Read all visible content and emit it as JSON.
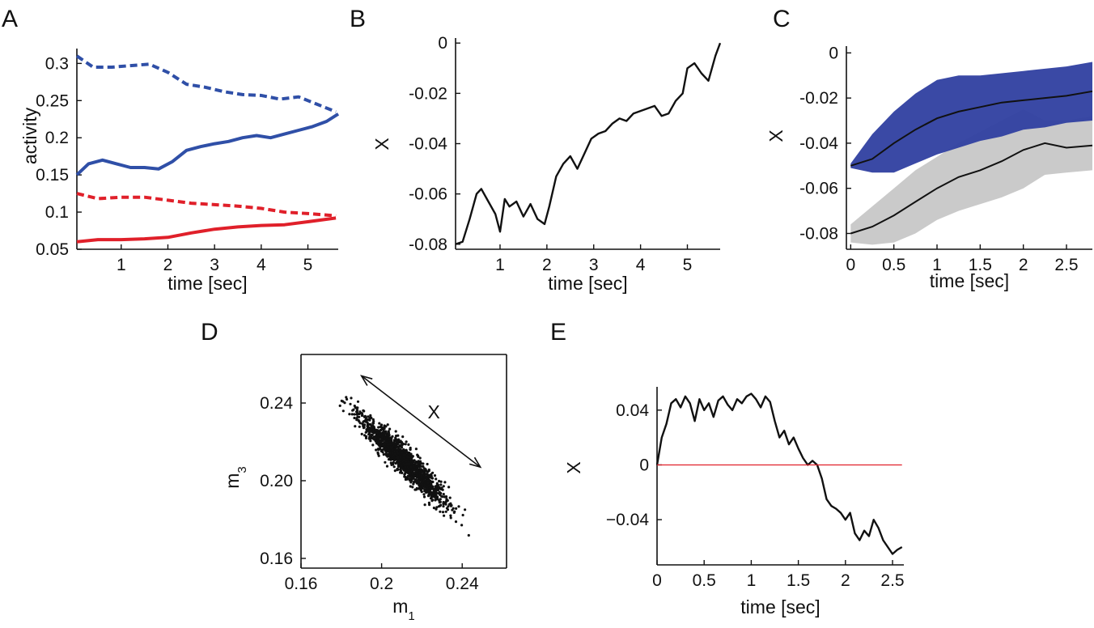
{
  "colors": {
    "blue": "#2f4fa7",
    "red": "#e0202a",
    "black": "#111111",
    "band_blue": "#2f3fa0",
    "band_gray": "#c4c4c4"
  },
  "chart_data": [
    {
      "panel": "A",
      "type": "line",
      "xlabel": "time [sec]",
      "ylabel": "activity",
      "xlim": [
        0.05,
        5.65
      ],
      "ylim": [
        0.05,
        0.32
      ],
      "xticks": [
        1,
        2,
        3,
        4,
        5
      ],
      "xtick_labels": [
        "1",
        "2",
        "3",
        "4",
        "5"
      ],
      "yticks": [
        0.05,
        0.1,
        0.15,
        0.2,
        0.25,
        0.3
      ],
      "ytick_labels": [
        "0.05",
        "0.1",
        "0.15",
        "0.2",
        "0.25",
        "0.3"
      ],
      "series": [
        {
          "color": "blue",
          "style": "dashed",
          "x": [
            0.05,
            0.4,
            0.8,
            1.2,
            1.6,
            2.0,
            2.4,
            2.8,
            3.2,
            3.6,
            4.0,
            4.4,
            4.8,
            5.2,
            5.6
          ],
          "y": [
            0.31,
            0.295,
            0.295,
            0.297,
            0.299,
            0.288,
            0.272,
            0.268,
            0.262,
            0.258,
            0.257,
            0.252,
            0.255,
            0.245,
            0.235
          ]
        },
        {
          "color": "blue",
          "style": "solid",
          "x": [
            0.05,
            0.3,
            0.6,
            0.9,
            1.2,
            1.5,
            1.8,
            2.1,
            2.4,
            2.7,
            3.0,
            3.3,
            3.6,
            3.9,
            4.2,
            4.5,
            4.8,
            5.1,
            5.4,
            5.65
          ],
          "y": [
            0.15,
            0.165,
            0.17,
            0.165,
            0.16,
            0.16,
            0.158,
            0.168,
            0.183,
            0.188,
            0.192,
            0.195,
            0.2,
            0.203,
            0.2,
            0.205,
            0.21,
            0.215,
            0.222,
            0.232
          ]
        },
        {
          "color": "red",
          "style": "dashed",
          "x": [
            0.05,
            0.5,
            1.0,
            1.5,
            2.0,
            2.5,
            3.0,
            3.5,
            4.0,
            4.5,
            5.0,
            5.6
          ],
          "y": [
            0.125,
            0.118,
            0.12,
            0.12,
            0.116,
            0.112,
            0.11,
            0.108,
            0.105,
            0.1,
            0.098,
            0.095
          ]
        },
        {
          "color": "red",
          "style": "solid",
          "x": [
            0.05,
            0.5,
            1.0,
            1.5,
            2.0,
            2.5,
            3.0,
            3.5,
            4.0,
            4.5,
            5.0,
            5.6
          ],
          "y": [
            0.06,
            0.063,
            0.063,
            0.064,
            0.066,
            0.072,
            0.077,
            0.08,
            0.082,
            0.083,
            0.087,
            0.092
          ]
        }
      ]
    },
    {
      "panel": "B",
      "type": "line",
      "xlabel": "time [sec]",
      "ylabel": "X",
      "xlim": [
        0.05,
        5.7
      ],
      "ylim": [
        -0.082,
        0.002
      ],
      "xticks": [
        1,
        2,
        3,
        4,
        5
      ],
      "xtick_labels": [
        "1",
        "2",
        "3",
        "4",
        "5"
      ],
      "yticks": [
        0,
        -0.02,
        -0.04,
        -0.06,
        -0.08
      ],
      "ytick_labels": [
        "0",
        "-0.02",
        "-0.04",
        "-0.06",
        "-0.08"
      ],
      "series": [
        {
          "color": "black",
          "style": "solid",
          "x": [
            0.05,
            0.2,
            0.35,
            0.5,
            0.6,
            0.75,
            0.9,
            1.0,
            1.1,
            1.2,
            1.35,
            1.5,
            1.65,
            1.8,
            1.95,
            2.05,
            2.2,
            2.35,
            2.5,
            2.65,
            2.8,
            2.95,
            3.1,
            3.25,
            3.4,
            3.55,
            3.7,
            3.85,
            4.0,
            4.15,
            4.3,
            4.45,
            4.6,
            4.75,
            4.9,
            5.0,
            5.15,
            5.3,
            5.45,
            5.6,
            5.7
          ],
          "y": [
            -0.08,
            -0.079,
            -0.07,
            -0.06,
            -0.058,
            -0.063,
            -0.068,
            -0.075,
            -0.062,
            -0.065,
            -0.063,
            -0.069,
            -0.064,
            -0.07,
            -0.072,
            -0.065,
            -0.053,
            -0.048,
            -0.045,
            -0.05,
            -0.044,
            -0.038,
            -0.036,
            -0.035,
            -0.032,
            -0.03,
            -0.031,
            -0.028,
            -0.027,
            -0.026,
            -0.025,
            -0.029,
            -0.028,
            -0.023,
            -0.02,
            -0.01,
            -0.008,
            -0.012,
            -0.015,
            -0.005,
            0.0
          ]
        }
      ]
    },
    {
      "panel": "C",
      "type": "area",
      "xlabel": "time [sec]",
      "ylabel": "X",
      "xlim": [
        -0.05,
        2.8
      ],
      "ylim": [
        -0.087,
        0.003
      ],
      "xticks": [
        0,
        0.5,
        1,
        1.5,
        2,
        2.5
      ],
      "xtick_labels": [
        "0",
        "0.5",
        "1",
        "1.5",
        "2",
        "2.5"
      ],
      "yticks": [
        0,
        -0.02,
        -0.04,
        -0.06,
        -0.08
      ],
      "ytick_labels": [
        "0",
        "-0.02",
        "-0.04",
        "-0.06",
        "-0.08"
      ],
      "series": [
        {
          "color": "band_gray",
          "x": [
            0,
            0.25,
            0.5,
            0.75,
            1.0,
            1.25,
            1.5,
            1.75,
            2.0,
            2.25,
            2.5,
            2.8
          ],
          "mean": [
            -0.08,
            -0.077,
            -0.072,
            -0.066,
            -0.06,
            -0.055,
            -0.052,
            -0.048,
            -0.043,
            -0.04,
            -0.042,
            -0.041
          ],
          "upper": [
            -0.076,
            -0.068,
            -0.06,
            -0.052,
            -0.046,
            -0.04,
            -0.035,
            -0.03,
            -0.025,
            -0.03,
            -0.03,
            -0.028
          ],
          "lower": [
            -0.084,
            -0.085,
            -0.084,
            -0.08,
            -0.074,
            -0.07,
            -0.067,
            -0.064,
            -0.06,
            -0.054,
            -0.053,
            -0.052
          ]
        },
        {
          "color": "band_blue",
          "x": [
            0,
            0.25,
            0.5,
            0.75,
            1.0,
            1.25,
            1.5,
            1.75,
            2.0,
            2.25,
            2.5,
            2.8
          ],
          "mean": [
            -0.05,
            -0.047,
            -0.04,
            -0.034,
            -0.029,
            -0.026,
            -0.024,
            -0.022,
            -0.021,
            -0.02,
            -0.019,
            -0.017
          ],
          "upper": [
            -0.049,
            -0.036,
            -0.026,
            -0.018,
            -0.012,
            -0.01,
            -0.01,
            -0.009,
            -0.008,
            -0.007,
            -0.006,
            -0.004
          ],
          "lower": [
            -0.051,
            -0.053,
            -0.053,
            -0.049,
            -0.045,
            -0.042,
            -0.039,
            -0.037,
            -0.034,
            -0.033,
            -0.031,
            -0.03
          ]
        }
      ]
    },
    {
      "panel": "D",
      "type": "scatter",
      "xlabel": "m",
      "xlabel_sub": "1",
      "ylabel": "m",
      "ylabel_sub": "3",
      "xlim": [
        0.16,
        0.262
      ],
      "ylim": [
        0.155,
        0.265
      ],
      "xticks": [
        0.16,
        0.2,
        0.24
      ],
      "xtick_labels": [
        "0.16",
        "0.2",
        "0.24"
      ],
      "yticks": [
        0.16,
        0.2,
        0.24
      ],
      "ytick_labels": [
        "0.16",
        "0.20",
        "0.24"
      ],
      "point_cloud": {
        "from": [
          0.164,
          0.259
        ],
        "to": [
          0.258,
          0.162
        ],
        "spread": 0.0045,
        "count": 1400
      },
      "annotation": {
        "label": "X",
        "arrow_from": [
          0.19,
          0.254
        ],
        "arrow_to": [
          0.249,
          0.207
        ]
      }
    },
    {
      "panel": "E",
      "type": "line",
      "xlabel": "time [sec]",
      "ylabel": "X",
      "xlim": [
        0,
        2.62
      ],
      "ylim": [
        -0.073,
        0.057
      ],
      "xticks": [
        0,
        0.5,
        1,
        1.5,
        2,
        2.5
      ],
      "xtick_labels": [
        "0",
        "0.5",
        "1",
        "1.5",
        "2",
        "2.5"
      ],
      "yticks": [
        0.04,
        0,
        -0.04
      ],
      "ytick_labels": [
        "0.04",
        "0",
        "−0.04"
      ],
      "series": [
        {
          "color": "black",
          "style": "solid",
          "x": [
            0,
            0.05,
            0.1,
            0.15,
            0.2,
            0.25,
            0.3,
            0.35,
            0.4,
            0.45,
            0.5,
            0.55,
            0.6,
            0.65,
            0.7,
            0.75,
            0.8,
            0.85,
            0.9,
            0.95,
            1.0,
            1.05,
            1.1,
            1.15,
            1.2,
            1.25,
            1.3,
            1.35,
            1.4,
            1.45,
            1.5,
            1.55,
            1.6,
            1.65,
            1.7,
            1.75,
            1.8,
            1.85,
            1.9,
            1.95,
            2.0,
            2.05,
            2.1,
            2.15,
            2.2,
            2.25,
            2.3,
            2.35,
            2.4,
            2.45,
            2.5,
            2.55,
            2.6
          ],
          "y": [
            0.0,
            0.02,
            0.03,
            0.045,
            0.048,
            0.042,
            0.05,
            0.045,
            0.032,
            0.048,
            0.04,
            0.045,
            0.035,
            0.047,
            0.05,
            0.044,
            0.04,
            0.048,
            0.045,
            0.05,
            0.052,
            0.048,
            0.042,
            0.05,
            0.046,
            0.032,
            0.02,
            0.025,
            0.015,
            0.02,
            0.012,
            0.005,
            0.0,
            0.003,
            0.0,
            -0.01,
            -0.025,
            -0.03,
            -0.032,
            -0.035,
            -0.04,
            -0.035,
            -0.05,
            -0.055,
            -0.048,
            -0.052,
            -0.04,
            -0.046,
            -0.055,
            -0.06,
            -0.065,
            -0.062,
            -0.06
          ]
        },
        {
          "color": "red",
          "style": "solid",
          "x": [
            0,
            2.6
          ],
          "y": [
            0,
            0
          ]
        }
      ]
    }
  ]
}
